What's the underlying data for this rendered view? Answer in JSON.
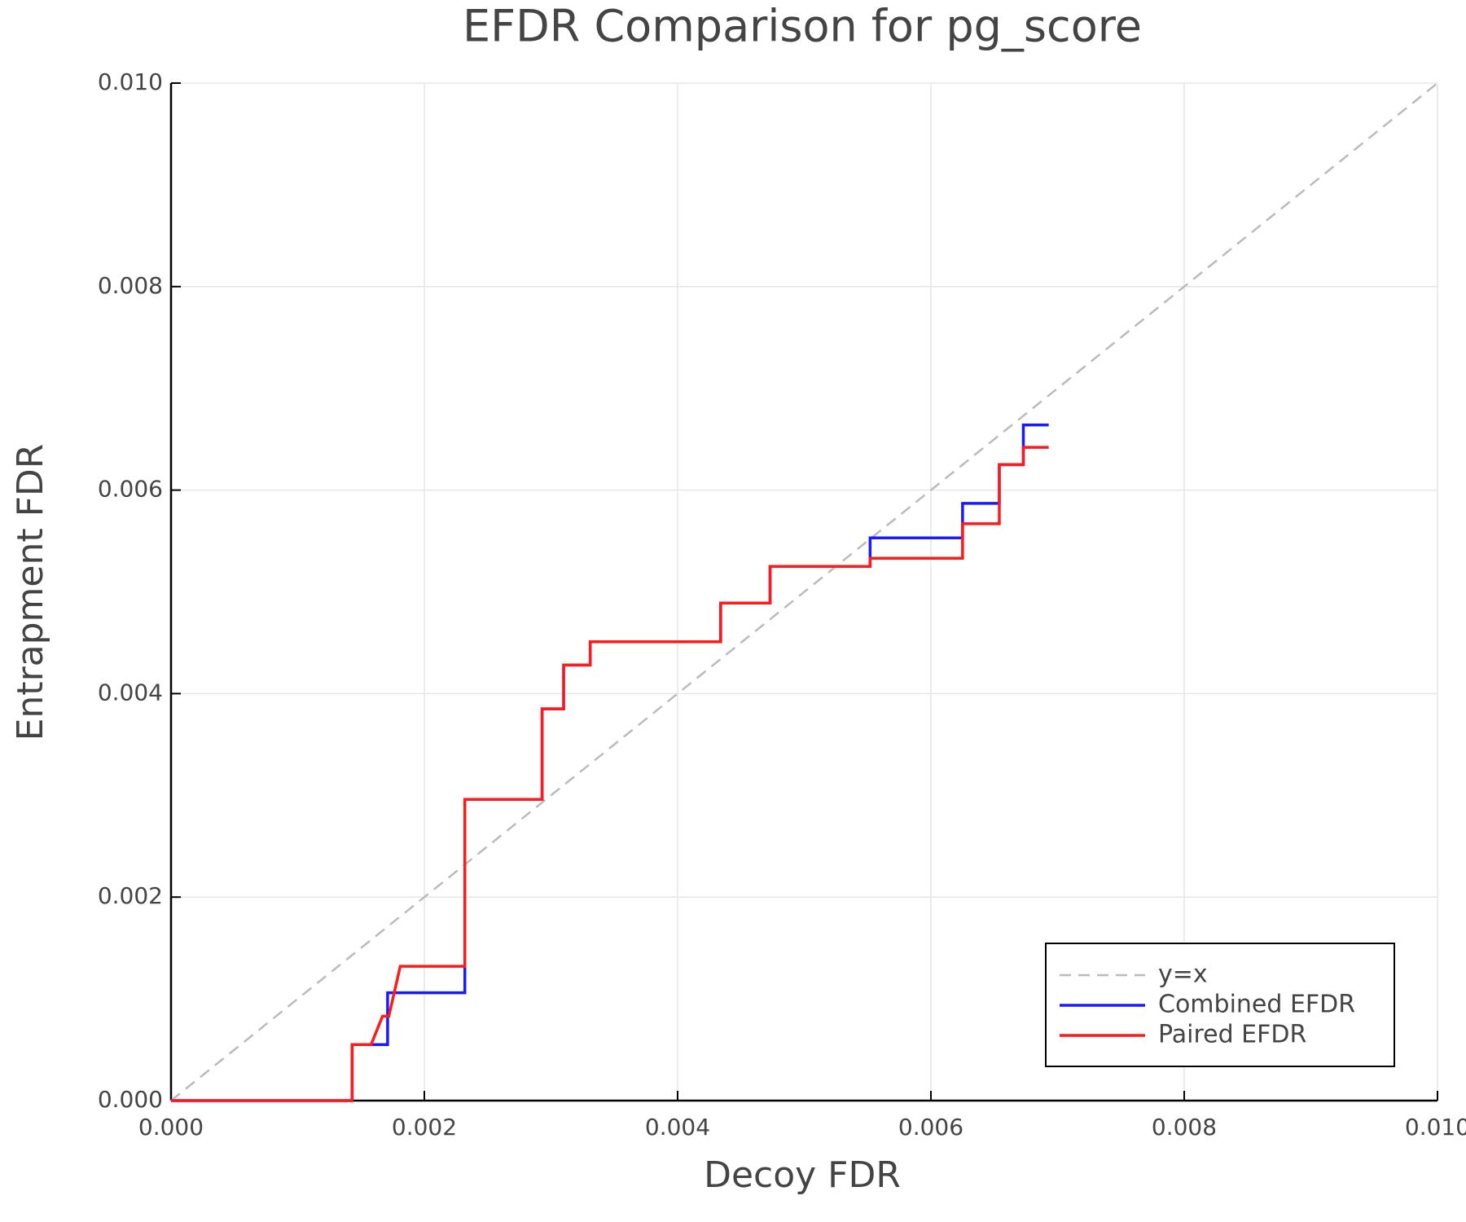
{
  "chart_data": {
    "type": "line",
    "title": "EFDR Comparison for pg_score",
    "x_label": "Decoy FDR",
    "y_label": "Entrapment FDR",
    "xlim": [
      0,
      0.01
    ],
    "ylim": [
      0,
      0.01
    ],
    "xticks": [
      {
        "value": 0,
        "label": "0.000"
      },
      {
        "value": 0.002,
        "label": "0.002"
      },
      {
        "value": 0.004,
        "label": "0.004"
      },
      {
        "value": 0.006,
        "label": "0.006"
      },
      {
        "value": 0.008,
        "label": "0.008"
      },
      {
        "value": 0.01,
        "label": "0.010"
      }
    ],
    "yticks": [
      {
        "value": 0,
        "label": "0.000"
      },
      {
        "value": 0.002,
        "label": "0.002"
      },
      {
        "value": 0.004,
        "label": "0.004"
      },
      {
        "value": 0.006,
        "label": "0.006"
      },
      {
        "value": 0.008,
        "label": "0.008"
      },
      {
        "value": 0.01,
        "label": "0.010"
      }
    ],
    "grid": true,
    "legend": "lower right",
    "series": [
      {
        "name": "y=x",
        "color": "#bbbbbb",
        "dashed": true,
        "x": [
          0,
          0.01
        ],
        "values": [
          0,
          0.01
        ]
      },
      {
        "name": "Combined EFDR",
        "color": "#1a1aff",
        "dashed": false,
        "x": [
          0,
          0.00143,
          0.00143,
          0.00171,
          0.00171,
          0.00232,
          0.00232,
          0.00293,
          0.00293,
          0.0031,
          0.0031,
          0.00331,
          0.00331,
          0.00434,
          0.00434,
          0.00473,
          0.00473,
          0.00552,
          0.00552,
          0.00625,
          0.00625,
          0.00654,
          0.00654,
          0.00673,
          0.00673,
          0.00693
        ],
        "values": [
          0,
          0,
          0.00055,
          0.00055,
          0.00106,
          0.00106,
          0.00296,
          0.00296,
          0.00385,
          0.00385,
          0.00428,
          0.00428,
          0.00451,
          0.00451,
          0.00489,
          0.00489,
          0.00525,
          0.00525,
          0.00553,
          0.00553,
          0.00587,
          0.00587,
          0.00625,
          0.00625,
          0.00664,
          0.00664
        ]
      },
      {
        "name": "Paired EFDR",
        "color": "#ff1a1a",
        "dashed": false,
        "x": [
          0,
          0.00143,
          0.00143,
          0.00158,
          0.00167,
          0.00172,
          0.00181,
          0.00232,
          0.00232,
          0.00293,
          0.00293,
          0.0031,
          0.0031,
          0.00331,
          0.00331,
          0.00434,
          0.00434,
          0.00473,
          0.00473,
          0.00552,
          0.00552,
          0.00625,
          0.00625,
          0.00654,
          0.00654,
          0.00673,
          0.00673,
          0.00693
        ],
        "values": [
          0,
          0,
          0.00055,
          0.00055,
          0.00083,
          0.00083,
          0.00132,
          0.00132,
          0.00296,
          0.00296,
          0.00385,
          0.00385,
          0.00428,
          0.00428,
          0.00451,
          0.00451,
          0.00489,
          0.00489,
          0.00525,
          0.00525,
          0.00533,
          0.00533,
          0.00567,
          0.00567,
          0.00625,
          0.00625,
          0.00642,
          0.00642
        ]
      }
    ]
  }
}
